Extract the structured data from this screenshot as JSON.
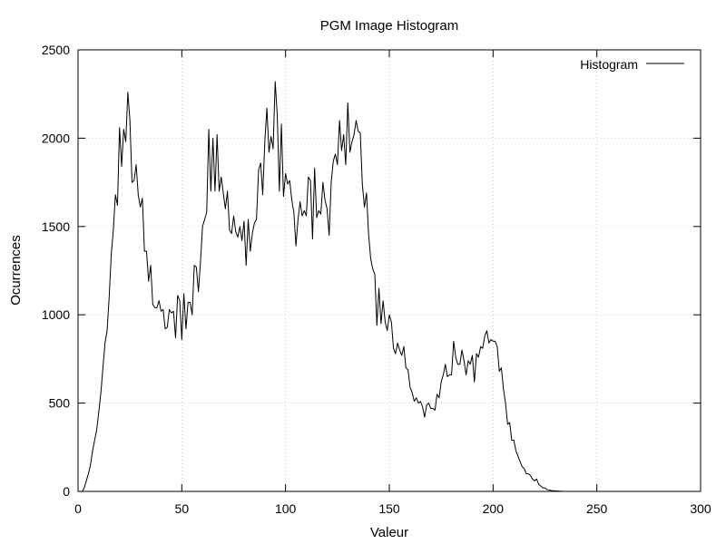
{
  "chart_data": {
    "type": "line",
    "title": "PGM Image Histogram",
    "xlabel": "Valeur",
    "ylabel": "Ocurrences",
    "xlim": [
      0,
      300
    ],
    "ylim": [
      0,
      2500
    ],
    "xticks": [
      0,
      50,
      100,
      150,
      200,
      250,
      300
    ],
    "yticks": [
      0,
      500,
      1000,
      1500,
      2000,
      2500
    ],
    "grid": true,
    "legend": {
      "position": "top-right"
    },
    "series": [
      {
        "name": "Histogram",
        "color": "#000000",
        "points": [
          [
            0,
            0
          ],
          [
            1,
            0
          ],
          [
            2,
            0
          ],
          [
            3,
            20
          ],
          [
            4,
            60
          ],
          [
            5,
            100
          ],
          [
            6,
            150
          ],
          [
            7,
            230
          ],
          [
            8,
            290
          ],
          [
            9,
            350
          ],
          [
            10,
            450
          ],
          [
            11,
            560
          ],
          [
            12,
            700
          ],
          [
            13,
            840
          ],
          [
            14,
            910
          ],
          [
            15,
            1100
          ],
          [
            16,
            1340
          ],
          [
            17,
            1480
          ],
          [
            18,
            1680
          ],
          [
            19,
            1620
          ],
          [
            20,
            2060
          ],
          [
            21,
            1840
          ],
          [
            22,
            2050
          ],
          [
            23,
            1980
          ],
          [
            24,
            2260
          ],
          [
            25,
            2100
          ],
          [
            26,
            1750
          ],
          [
            27,
            1760
          ],
          [
            28,
            1850
          ],
          [
            29,
            1680
          ],
          [
            30,
            1610
          ],
          [
            31,
            1660
          ],
          [
            32,
            1360
          ],
          [
            33,
            1360
          ],
          [
            34,
            1190
          ],
          [
            35,
            1280
          ],
          [
            36,
            1060
          ],
          [
            37,
            1040
          ],
          [
            38,
            1040
          ],
          [
            39,
            1080
          ],
          [
            40,
            1020
          ],
          [
            41,
            1030
          ],
          [
            42,
            920
          ],
          [
            43,
            930
          ],
          [
            44,
            1030
          ],
          [
            45,
            1010
          ],
          [
            46,
            1020
          ],
          [
            47,
            870
          ],
          [
            48,
            1110
          ],
          [
            49,
            1080
          ],
          [
            50,
            860
          ],
          [
            51,
            1120
          ],
          [
            52,
            920
          ],
          [
            53,
            1070
          ],
          [
            54,
            1070
          ],
          [
            55,
            1000
          ],
          [
            56,
            1280
          ],
          [
            57,
            1270
          ],
          [
            58,
            1130
          ],
          [
            59,
            1300
          ],
          [
            60,
            1500
          ],
          [
            61,
            1540
          ],
          [
            62,
            1580
          ],
          [
            63,
            2050
          ],
          [
            64,
            1700
          ],
          [
            65,
            2000
          ],
          [
            66,
            1700
          ],
          [
            67,
            2020
          ],
          [
            68,
            1700
          ],
          [
            69,
            1780
          ],
          [
            70,
            1690
          ],
          [
            71,
            1600
          ],
          [
            72,
            1700
          ],
          [
            73,
            1480
          ],
          [
            74,
            1460
          ],
          [
            75,
            1560
          ],
          [
            76,
            1470
          ],
          [
            77,
            1440
          ],
          [
            78,
            1500
          ],
          [
            79,
            1420
          ],
          [
            80,
            1530
          ],
          [
            81,
            1280
          ],
          [
            82,
            1540
          ],
          [
            83,
            1360
          ],
          [
            84,
            1460
          ],
          [
            85,
            1520
          ],
          [
            86,
            1540
          ],
          [
            87,
            1820
          ],
          [
            88,
            1860
          ],
          [
            89,
            1680
          ],
          [
            90,
            1980
          ],
          [
            91,
            2170
          ],
          [
            92,
            1920
          ],
          [
            93,
            2010
          ],
          [
            94,
            1940
          ],
          [
            95,
            2320
          ],
          [
            96,
            2130
          ],
          [
            97,
            1700
          ],
          [
            98,
            2080
          ],
          [
            99,
            1670
          ],
          [
            100,
            1800
          ],
          [
            101,
            1740
          ],
          [
            102,
            1760
          ],
          [
            103,
            1650
          ],
          [
            104,
            1580
          ],
          [
            105,
            1390
          ],
          [
            106,
            1540
          ],
          [
            107,
            1640
          ],
          [
            108,
            1560
          ],
          [
            109,
            1590
          ],
          [
            110,
            1560
          ],
          [
            111,
            1780
          ],
          [
            112,
            1760
          ],
          [
            113,
            1430
          ],
          [
            114,
            1830
          ],
          [
            115,
            1550
          ],
          [
            116,
            1590
          ],
          [
            117,
            1570
          ],
          [
            118,
            1750
          ],
          [
            119,
            1650
          ],
          [
            120,
            1600
          ],
          [
            121,
            1450
          ],
          [
            122,
            1750
          ],
          [
            123,
            1870
          ],
          [
            124,
            1910
          ],
          [
            125,
            1850
          ],
          [
            126,
            2100
          ],
          [
            127,
            1930
          ],
          [
            128,
            2020
          ],
          [
            129,
            1850
          ],
          [
            130,
            2200
          ],
          [
            131,
            1920
          ],
          [
            132,
            1980
          ],
          [
            133,
            2020
          ],
          [
            134,
            2100
          ],
          [
            135,
            2040
          ],
          [
            136,
            2030
          ],
          [
            137,
            1740
          ],
          [
            138,
            1610
          ],
          [
            139,
            1690
          ],
          [
            140,
            1460
          ],
          [
            141,
            1320
          ],
          [
            142,
            1260
          ],
          [
            143,
            1230
          ],
          [
            144,
            940
          ],
          [
            145,
            1150
          ],
          [
            146,
            950
          ],
          [
            147,
            1080
          ],
          [
            148,
            960
          ],
          [
            149,
            910
          ],
          [
            150,
            1000
          ],
          [
            151,
            960
          ],
          [
            152,
            810
          ],
          [
            153,
            780
          ],
          [
            154,
            840
          ],
          [
            155,
            800
          ],
          [
            156,
            770
          ],
          [
            157,
            820
          ],
          [
            158,
            700
          ],
          [
            159,
            690
          ],
          [
            160,
            590
          ],
          [
            161,
            560
          ],
          [
            162,
            510
          ],
          [
            163,
            530
          ],
          [
            164,
            500
          ],
          [
            165,
            510
          ],
          [
            166,
            480
          ],
          [
            167,
            420
          ],
          [
            168,
            490
          ],
          [
            169,
            500
          ],
          [
            170,
            470
          ],
          [
            171,
            470
          ],
          [
            172,
            460
          ],
          [
            173,
            550
          ],
          [
            174,
            530
          ],
          [
            175,
            620
          ],
          [
            176,
            660
          ],
          [
            177,
            720
          ],
          [
            178,
            650
          ],
          [
            179,
            660
          ],
          [
            180,
            660
          ],
          [
            181,
            850
          ],
          [
            182,
            760
          ],
          [
            183,
            720
          ],
          [
            184,
            720
          ],
          [
            185,
            800
          ],
          [
            186,
            740
          ],
          [
            187,
            660
          ],
          [
            188,
            740
          ],
          [
            189,
            720
          ],
          [
            190,
            770
          ],
          [
            191,
            620
          ],
          [
            192,
            780
          ],
          [
            193,
            760
          ],
          [
            194,
            820
          ],
          [
            195,
            810
          ],
          [
            196,
            880
          ],
          [
            197,
            910
          ],
          [
            198,
            840
          ],
          [
            199,
            860
          ],
          [
            200,
            850
          ],
          [
            201,
            850
          ],
          [
            202,
            820
          ],
          [
            203,
            680
          ],
          [
            204,
            700
          ],
          [
            205,
            580
          ],
          [
            206,
            500
          ],
          [
            207,
            380
          ],
          [
            208,
            390
          ],
          [
            209,
            290
          ],
          [
            210,
            290
          ],
          [
            211,
            230
          ],
          [
            212,
            200
          ],
          [
            213,
            170
          ],
          [
            214,
            140
          ],
          [
            215,
            130
          ],
          [
            216,
            100
          ],
          [
            217,
            100
          ],
          [
            218,
            90
          ],
          [
            219,
            70
          ],
          [
            220,
            60
          ],
          [
            221,
            70
          ],
          [
            222,
            40
          ],
          [
            223,
            30
          ],
          [
            224,
            20
          ],
          [
            225,
            20
          ],
          [
            226,
            10
          ],
          [
            227,
            8
          ],
          [
            228,
            5
          ],
          [
            229,
            4
          ],
          [
            230,
            3
          ],
          [
            231,
            2
          ],
          [
            232,
            1
          ],
          [
            233,
            1
          ],
          [
            234,
            0
          ],
          [
            235,
            0
          ],
          [
            240,
            0
          ],
          [
            245,
            0
          ],
          [
            250,
            0
          ]
        ]
      }
    ]
  }
}
